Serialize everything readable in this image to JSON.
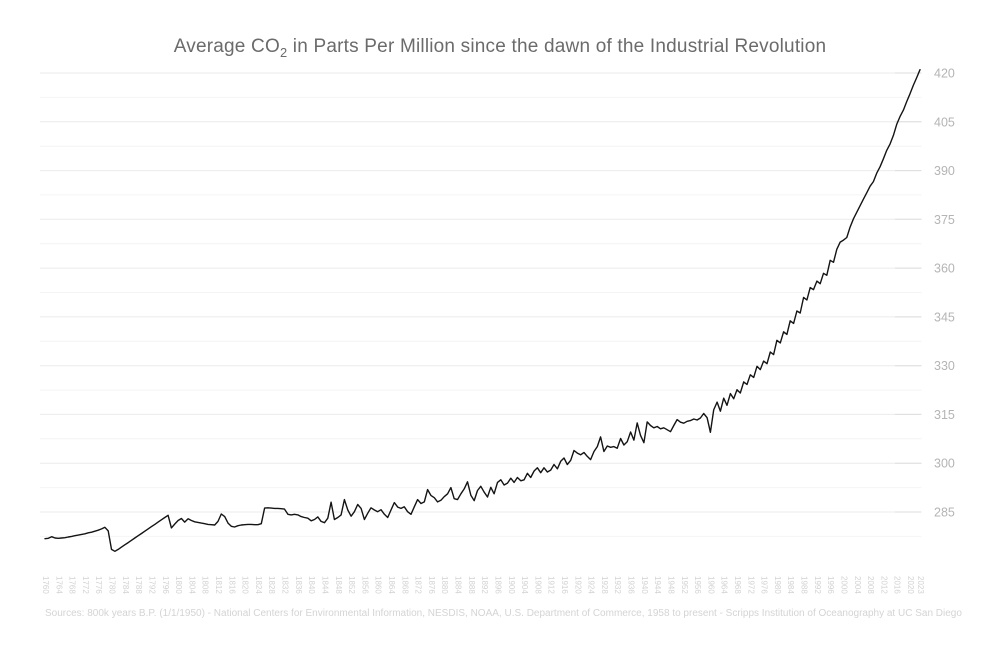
{
  "chart_data": {
    "type": "line",
    "title_prefix": "Average CO",
    "title_subscript": "2",
    "title_suffix": " in Parts Per Million since the dawn of the Industrial Revolution",
    "source": "Sources: 800k years B.P. (1/1/1950) - National Centers for Environmental Information, NESDIS, NOAA, U.S. Department of Commerce, 1958 to present - Scripps Institution of Oceanography at UC San Diego",
    "xlabel": "",
    "ylabel": "",
    "legend_position": "none",
    "grid": true,
    "x_start": 1760,
    "x_end": 2023,
    "xlim": [
      1760,
      2023
    ],
    "ylim": [
      270,
      422
    ],
    "x_tick_years": [
      1760,
      1764,
      1768,
      1772,
      1776,
      1780,
      1784,
      1788,
      1792,
      1796,
      1800,
      1804,
      1808,
      1812,
      1816,
      1820,
      1824,
      1828,
      1832,
      1836,
      1840,
      1844,
      1848,
      1852,
      1856,
      1860,
      1864,
      1868,
      1872,
      1876,
      1880,
      1884,
      1888,
      1892,
      1896,
      1900,
      1904,
      1908,
      1912,
      1916,
      1920,
      1924,
      1928,
      1932,
      1936,
      1940,
      1944,
      1948,
      1952,
      1956,
      1960,
      1964,
      1968,
      1972,
      1976,
      1980,
      1984,
      1988,
      1992,
      1996,
      2000,
      2004,
      2008,
      2012,
      2016,
      2020,
      2023
    ],
    "y_ticks": [
      285,
      300,
      315,
      330,
      345,
      360,
      375,
      390,
      405,
      420
    ],
    "y_minor_ticks": [
      277.5,
      292.5,
      307.5,
      322.5,
      337.5,
      352.5,
      367.5,
      382.5,
      397.5,
      412.5
    ],
    "series": [
      {
        "name": "Average CO2 (ppm)",
        "x_start": 1760,
        "x_step": 1,
        "values": [
          276.8,
          276.9,
          277.4,
          277.0,
          276.9,
          277.0,
          277.1,
          277.3,
          277.5,
          277.7,
          277.9,
          278.1,
          278.3,
          278.6,
          278.8,
          279.1,
          279.4,
          279.8,
          280.3,
          279.2,
          273.5,
          272.9,
          273.5,
          274.2,
          274.9,
          275.6,
          276.3,
          277.0,
          277.7,
          278.4,
          279.1,
          279.8,
          280.5,
          281.2,
          281.9,
          282.6,
          283.3,
          284.0,
          280.1,
          281.3,
          282.4,
          283.0,
          281.9,
          282.9,
          282.4,
          282.0,
          281.8,
          281.6,
          281.4,
          281.2,
          281.1,
          281.0,
          282.1,
          284.4,
          283.6,
          281.6,
          280.6,
          280.4,
          280.8,
          281.0,
          281.1,
          281.2,
          281.2,
          281.1,
          281.1,
          281.4,
          286.2,
          286.3,
          286.2,
          286.1,
          286.1,
          286.0,
          285.9,
          284.3,
          284.1,
          284.3,
          284.1,
          283.6,
          283.3,
          283.1,
          282.3,
          282.7,
          283.5,
          282.1,
          281.7,
          283.1,
          288.0,
          282.7,
          283.3,
          284.1,
          288.8,
          285.6,
          283.7,
          285.1,
          287.3,
          286.1,
          282.7,
          284.6,
          286.3,
          285.6,
          285.1,
          285.7,
          284.3,
          283.3,
          285.6,
          287.9,
          286.5,
          286.1,
          286.6,
          285.1,
          284.3,
          286.6,
          288.8,
          287.6,
          288.1,
          291.9,
          290.1,
          289.4,
          288.1,
          288.6,
          289.7,
          290.6,
          292.5,
          289.1,
          288.8,
          290.6,
          292.1,
          294.3,
          290.1,
          288.5,
          291.6,
          292.9,
          291.1,
          289.6,
          292.6,
          290.6,
          294.1,
          294.9,
          293.3,
          293.9,
          295.4,
          294.1,
          295.6,
          294.6,
          294.9,
          296.9,
          295.6,
          297.6,
          298.6,
          297.1,
          298.6,
          297.3,
          297.9,
          299.6,
          298.3,
          300.6,
          301.6,
          299.6,
          300.9,
          303.9,
          303.1,
          302.6,
          303.3,
          302.1,
          301.1,
          303.6,
          305.1,
          308.1,
          303.6,
          305.3,
          304.9,
          305.1,
          304.6,
          307.6,
          305.6,
          306.6,
          309.6,
          307.1,
          312.4,
          308.6,
          306.3,
          312.7,
          311.6,
          310.9,
          311.3,
          310.6,
          310.9,
          310.3,
          309.7,
          311.6,
          313.4,
          312.6,
          312.3,
          312.9,
          313.1,
          313.6,
          313.3,
          313.9,
          315.3,
          314.0,
          309.5,
          316.4,
          318.8,
          316.0,
          320.0,
          317.8,
          321.4,
          319.8,
          322.6,
          321.6,
          325.0,
          324.2,
          327.2,
          326.4,
          329.8,
          328.8,
          331.4,
          330.6,
          334.2,
          333.4,
          337.8,
          337.0,
          340.4,
          339.6,
          343.8,
          343.0,
          346.8,
          346.2,
          351.0,
          350.2,
          354.0,
          353.4,
          356.0,
          355.2,
          358.4,
          357.8,
          362.4,
          361.8,
          365.8,
          368.0,
          368.6,
          369.4,
          372.6,
          375.2,
          377.2,
          379.2,
          381.2,
          383.2,
          385.2,
          386.6,
          389.2,
          391.2,
          393.6,
          396.2,
          398.2,
          400.8,
          404.2,
          406.6,
          408.6,
          411.2,
          413.6,
          416.2,
          418.6,
          421.0
        ]
      }
    ],
    "colors": {
      "background": "#ffffff",
      "title": "#6b6b6b",
      "line": "#141414",
      "grid_major": "#ebebeb",
      "grid_minor": "#f4f4f4",
      "tick_mark": "#dedede",
      "y_tick_label": "#b4b4b4",
      "x_tick_label": "#d2d2d2",
      "source": "#d4d4d4"
    }
  }
}
